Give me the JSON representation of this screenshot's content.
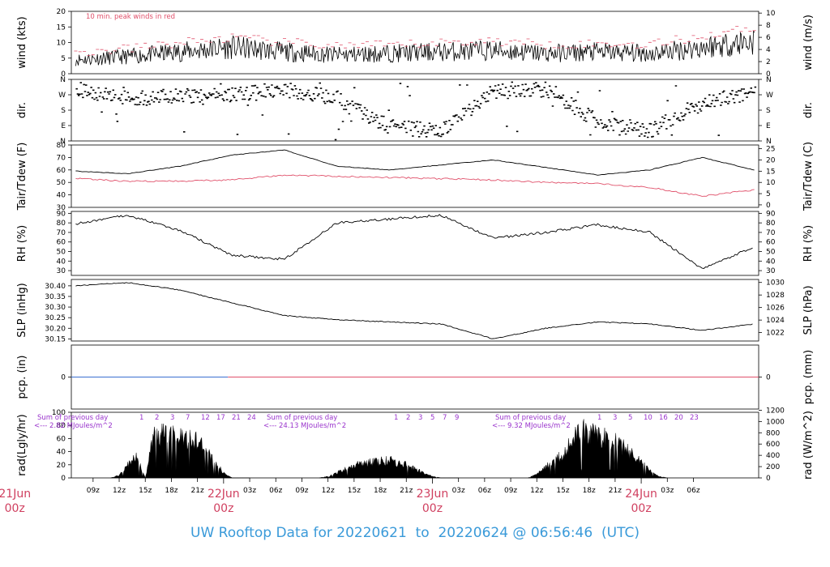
{
  "footer": {
    "label": "UW Rooftop Data for",
    "start": "20220621",
    "sep": "to",
    "end": "20220624",
    "at": "@",
    "time": "06:56:46",
    "tz": "(UTC)"
  },
  "colors": {
    "wind": "#000000",
    "peak": "#e0506a",
    "temp": "#000000",
    "dew": "#e0506a",
    "rh": "#000000",
    "slp": "#000000",
    "pcp_early": "#3a6fd0",
    "pcp_late": "#e0506a",
    "rad_label": "#9933cc",
    "date_label": "#d04060",
    "footer": "#3a9ad9"
  },
  "chart_data": [
    {
      "type": "line",
      "panel": "wind",
      "ylabel": "wind (kts)",
      "ylabel_right": "wind (m/s)",
      "ylim": [
        0,
        20
      ],
      "yticks": [
        0,
        5,
        10,
        15,
        20
      ],
      "yticks_right": [
        0,
        2,
        4,
        6,
        8,
        10
      ],
      "annotation": "10 min. peak winds in red",
      "x_hours": [
        0,
        6,
        12,
        18,
        24,
        30,
        36,
        42,
        48,
        54,
        60,
        66,
        72,
        78
      ],
      "series": [
        {
          "role": "wind",
          "values": [
            4.5,
            5.5,
            7,
            8.5,
            7,
            6,
            6.5,
            7,
            7.5,
            6.5,
            7,
            6.5,
            8.5,
            10.5
          ]
        },
        {
          "role": "peak",
          "values": [
            6.5,
            8,
            10,
            11.5,
            10,
            9,
            9,
            10,
            10.5,
            9.5,
            9.5,
            9.5,
            12,
            15
          ]
        }
      ]
    },
    {
      "type": "scatter",
      "panel": "direction",
      "ylabel": "dir.",
      "categories": [
        "N",
        "W",
        "S",
        "E",
        "N"
      ],
      "x_hours": [
        0,
        6,
        12,
        18,
        24,
        30,
        36,
        42,
        48,
        54,
        60,
        66,
        72,
        78
      ],
      "values": [
        300,
        250,
        260,
        270,
        300,
        250,
        80,
        60,
        290,
        300,
        110,
        60,
        230,
        280
      ]
    },
    {
      "type": "line",
      "panel": "temperature",
      "ylabel": "Tair/Tdew (F)",
      "ylabel_right": "Tair/Tdew (C)",
      "ylim": [
        30,
        80
      ],
      "yticks": [
        30,
        40,
        50,
        60,
        70,
        80
      ],
      "yticks_right": [
        0,
        5,
        10,
        15,
        20,
        25
      ],
      "x_hours": [
        0,
        6,
        12,
        18,
        24,
        30,
        36,
        42,
        48,
        54,
        60,
        66,
        72,
        78
      ],
      "series": [
        {
          "role": "temp",
          "values": [
            59,
            57,
            63,
            72,
            76,
            63,
            60,
            64,
            68,
            62,
            56,
            60,
            70,
            60
          ]
        },
        {
          "role": "dew",
          "values": [
            53,
            51,
            51,
            52,
            56,
            55,
            54,
            53,
            52,
            50,
            49,
            46,
            39,
            44
          ]
        }
      ]
    },
    {
      "type": "line",
      "panel": "rh",
      "ylabel": "RH (%)",
      "ylabel_right": "RH (%)",
      "ylim": [
        25,
        92
      ],
      "yticks": [
        30,
        40,
        50,
        60,
        70,
        80,
        90
      ],
      "yticks_right": [
        30,
        40,
        50,
        60,
        70,
        80,
        90
      ],
      "x_hours": [
        0,
        6,
        12,
        18,
        24,
        30,
        36,
        42,
        48,
        54,
        60,
        66,
        72,
        78
      ],
      "values": [
        79,
        88,
        72,
        46,
        42,
        80,
        84,
        88,
        64,
        70,
        78,
        70,
        32,
        55
      ]
    },
    {
      "type": "line",
      "panel": "slp",
      "ylabel": "SLP (inHg)",
      "ylabel_right": "SLP (hPa)",
      "ylim": [
        30.14,
        30.43
      ],
      "yticks": [
        30.15,
        30.2,
        30.25,
        30.3,
        30.35,
        30.4
      ],
      "yticks_right": [
        1022,
        1024,
        1026,
        1028,
        1030
      ],
      "x_hours": [
        0,
        6,
        12,
        18,
        24,
        30,
        36,
        42,
        48,
        54,
        60,
        66,
        72,
        78
      ],
      "values": [
        30.4,
        30.415,
        30.38,
        30.32,
        30.26,
        30.24,
        30.23,
        30.22,
        30.15,
        30.2,
        30.23,
        30.22,
        30.19,
        30.22
      ]
    },
    {
      "type": "line",
      "panel": "pcp",
      "ylabel": "pcp. (in)",
      "ylabel_right": "pcp. (mm)",
      "yticks": [
        0
      ],
      "yticks_right": [
        0
      ],
      "x_hours": [
        0,
        78
      ],
      "values": [
        0,
        0
      ]
    },
    {
      "type": "area",
      "panel": "radiation",
      "ylabel": "rad(Lgly/hr)",
      "ylabel_right": "rad (W/m^2)",
      "ylim": [
        0,
        100
      ],
      "yticks": [
        0,
        20,
        40,
        60,
        80,
        100
      ],
      "yticks_right": [
        0,
        200,
        400,
        600,
        800,
        1000,
        1200
      ],
      "x_hours": [
        4,
        5,
        6,
        7,
        8,
        9,
        10,
        11,
        12,
        13,
        14,
        15,
        16,
        17,
        18,
        19,
        20,
        28,
        29,
        30,
        31,
        32,
        33,
        34,
        35,
        36,
        37,
        38,
        39,
        40,
        41,
        42,
        43,
        44,
        52,
        53,
        54,
        55,
        56,
        57,
        58,
        59,
        60,
        61,
        62,
        63,
        64,
        65,
        66,
        67,
        68
      ],
      "values": [
        0,
        5,
        25,
        40,
        0,
        85,
        85,
        80,
        80,
        75,
        70,
        55,
        30,
        10,
        0,
        0,
        0,
        0,
        3,
        10,
        18,
        25,
        28,
        30,
        32,
        35,
        30,
        25,
        18,
        10,
        3,
        0,
        0,
        0,
        0,
        8,
        20,
        35,
        45,
        70,
        90,
        90,
        82,
        78,
        70,
        60,
        45,
        30,
        15,
        3,
        0
      ],
      "daily_annotations": [
        {
          "sum_label": "Sum of previous day",
          "value_label": "<--- 2.82 MJoules/m^2",
          "hour_marks": [
            "1",
            "2",
            "3",
            "7",
            "12",
            "17",
            "21",
            "24"
          ]
        },
        {
          "sum_label": "Sum of previous day",
          "value_label": "<--- 24.13 MJoules/m^2",
          "hour_marks": [
            "1",
            "2",
            "3",
            "5",
            "7",
            "9"
          ]
        },
        {
          "sum_label": "Sum of previous day",
          "value_label": "<--- 9.32 MJoules/m^2",
          "hour_marks": [
            "1",
            "3",
            "5",
            "10",
            "16",
            "20",
            "23"
          ]
        }
      ]
    }
  ],
  "x_axis": {
    "ticks": [
      {
        "h": 2,
        "label": "09z"
      },
      {
        "h": 5,
        "label": "12z"
      },
      {
        "h": 8,
        "label": "15z"
      },
      {
        "h": 11,
        "label": "18z"
      },
      {
        "h": 14,
        "label": "21z"
      },
      {
        "h": 20,
        "label": "03z"
      },
      {
        "h": 23,
        "label": "06z"
      },
      {
        "h": 26,
        "label": "09z"
      },
      {
        "h": 29,
        "label": "12z"
      },
      {
        "h": 32,
        "label": "15z"
      },
      {
        "h": 35,
        "label": "18z"
      },
      {
        "h": 38,
        "label": "21z"
      },
      {
        "h": 44,
        "label": "03z"
      },
      {
        "h": 47,
        "label": "06z"
      },
      {
        "h": 50,
        "label": "09z"
      },
      {
        "h": 53,
        "label": "12z"
      },
      {
        "h": 56,
        "label": "15z"
      },
      {
        "h": 59,
        "label": "18z"
      },
      {
        "h": 62,
        "label": "21z"
      },
      {
        "h": 68,
        "label": "03z"
      },
      {
        "h": 71,
        "label": "06z"
      }
    ],
    "dates": [
      {
        "h": -7,
        "date": "21Jun",
        "time": "00z"
      },
      {
        "h": 17,
        "date": "22Jun",
        "time": "00z"
      },
      {
        "h": 41,
        "date": "23Jun",
        "time": "00z"
      },
      {
        "h": 65,
        "date": "24Jun",
        "time": "00z"
      }
    ]
  }
}
